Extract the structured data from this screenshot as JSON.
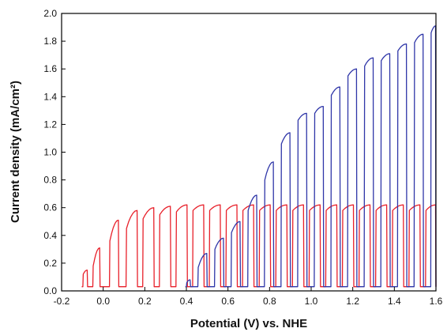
{
  "chart_data": {
    "type": "line",
    "title": "",
    "xlabel": "Potential (V) vs. NHE",
    "ylabel": "Current density (mA/cm²)",
    "xlim": [
      -0.2,
      1.6
    ],
    "ylim": [
      0.0,
      2.0
    ],
    "xticks": [
      -0.2,
      0.0,
      0.2,
      0.4,
      0.6,
      0.8,
      1.0,
      1.2,
      1.4,
      1.6
    ],
    "xtick_labels": [
      "-0.2",
      "0.0",
      "0.2",
      "0.4",
      "0.6",
      "0.8",
      "1.0",
      "1.2",
      "1.4",
      "1.6"
    ],
    "yticks": [
      0.0,
      0.2,
      0.4,
      0.6,
      0.8,
      1.0,
      1.2,
      1.4,
      1.6,
      1.8,
      2.0
    ],
    "ytick_labels": [
      "0.0",
      "0.2",
      "0.4",
      "0.6",
      "0.8",
      "1.0",
      "1.2",
      "1.4",
      "1.6",
      "1.8",
      "2.0"
    ],
    "grid": false,
    "legend": "none",
    "series": [
      {
        "color": "#e8202a",
        "pulses": [
          {
            "on": -0.098,
            "off": -0.075,
            "start": 0.12,
            "end": 0.15
          },
          {
            "on": -0.05,
            "off": -0.015,
            "start": 0.18,
            "end": 0.31
          },
          {
            "on": 0.03,
            "off": 0.075,
            "start": 0.36,
            "end": 0.51
          },
          {
            "on": 0.11,
            "off": 0.165,
            "start": 0.45,
            "end": 0.58
          },
          {
            "on": 0.19,
            "off": 0.245,
            "start": 0.52,
            "end": 0.6
          },
          {
            "on": 0.27,
            "off": 0.325,
            "start": 0.55,
            "end": 0.61
          },
          {
            "on": 0.35,
            "off": 0.405,
            "start": 0.57,
            "end": 0.62
          },
          {
            "on": 0.43,
            "off": 0.485,
            "start": 0.58,
            "end": 0.62
          },
          {
            "on": 0.51,
            "off": 0.565,
            "start": 0.58,
            "end": 0.62
          },
          {
            "on": 0.59,
            "off": 0.645,
            "start": 0.58,
            "end": 0.62
          },
          {
            "on": 0.67,
            "off": 0.725,
            "start": 0.58,
            "end": 0.62
          },
          {
            "on": 0.75,
            "off": 0.805,
            "start": 0.58,
            "end": 0.62
          },
          {
            "on": 0.83,
            "off": 0.885,
            "start": 0.58,
            "end": 0.62
          },
          {
            "on": 0.91,
            "off": 0.965,
            "start": 0.58,
            "end": 0.62
          },
          {
            "on": 0.99,
            "off": 1.045,
            "start": 0.58,
            "end": 0.62
          },
          {
            "on": 1.07,
            "off": 1.125,
            "start": 0.58,
            "end": 0.62
          },
          {
            "on": 1.15,
            "off": 1.205,
            "start": 0.58,
            "end": 0.62
          },
          {
            "on": 1.23,
            "off": 1.285,
            "start": 0.58,
            "end": 0.62
          },
          {
            "on": 1.31,
            "off": 1.365,
            "start": 0.58,
            "end": 0.62
          },
          {
            "on": 1.39,
            "off": 1.445,
            "start": 0.58,
            "end": 0.62
          },
          {
            "on": 1.47,
            "off": 1.525,
            "start": 0.58,
            "end": 0.62
          },
          {
            "on": 1.55,
            "off": 1.6,
            "start": 0.58,
            "end": 0.62
          }
        ]
      },
      {
        "color": "#2f36a8",
        "pulses": [
          {
            "on": 0.4,
            "off": 0.42,
            "start": 0.06,
            "end": 0.08
          },
          {
            "on": 0.455,
            "off": 0.5,
            "start": 0.17,
            "end": 0.27
          },
          {
            "on": 0.535,
            "off": 0.58,
            "start": 0.3,
            "end": 0.38
          },
          {
            "on": 0.615,
            "off": 0.66,
            "start": 0.42,
            "end": 0.5
          },
          {
            "on": 0.695,
            "off": 0.74,
            "start": 0.58,
            "end": 0.69
          },
          {
            "on": 0.775,
            "off": 0.82,
            "start": 0.8,
            "end": 0.93
          },
          {
            "on": 0.855,
            "off": 0.9,
            "start": 1.06,
            "end": 1.14
          },
          {
            "on": 0.935,
            "off": 0.98,
            "start": 1.23,
            "end": 1.28
          },
          {
            "on": 1.015,
            "off": 1.06,
            "start": 1.28,
            "end": 1.33
          },
          {
            "on": 1.095,
            "off": 1.14,
            "start": 1.41,
            "end": 1.47
          },
          {
            "on": 1.175,
            "off": 1.22,
            "start": 1.55,
            "end": 1.6
          },
          {
            "on": 1.255,
            "off": 1.3,
            "start": 1.62,
            "end": 1.68
          },
          {
            "on": 1.335,
            "off": 1.38,
            "start": 1.66,
            "end": 1.71
          },
          {
            "on": 1.415,
            "off": 1.46,
            "start": 1.73,
            "end": 1.78
          },
          {
            "on": 1.495,
            "off": 1.54,
            "start": 1.79,
            "end": 1.85
          },
          {
            "on": 1.575,
            "off": 1.6,
            "start": 1.86,
            "end": 1.91
          }
        ]
      }
    ]
  }
}
